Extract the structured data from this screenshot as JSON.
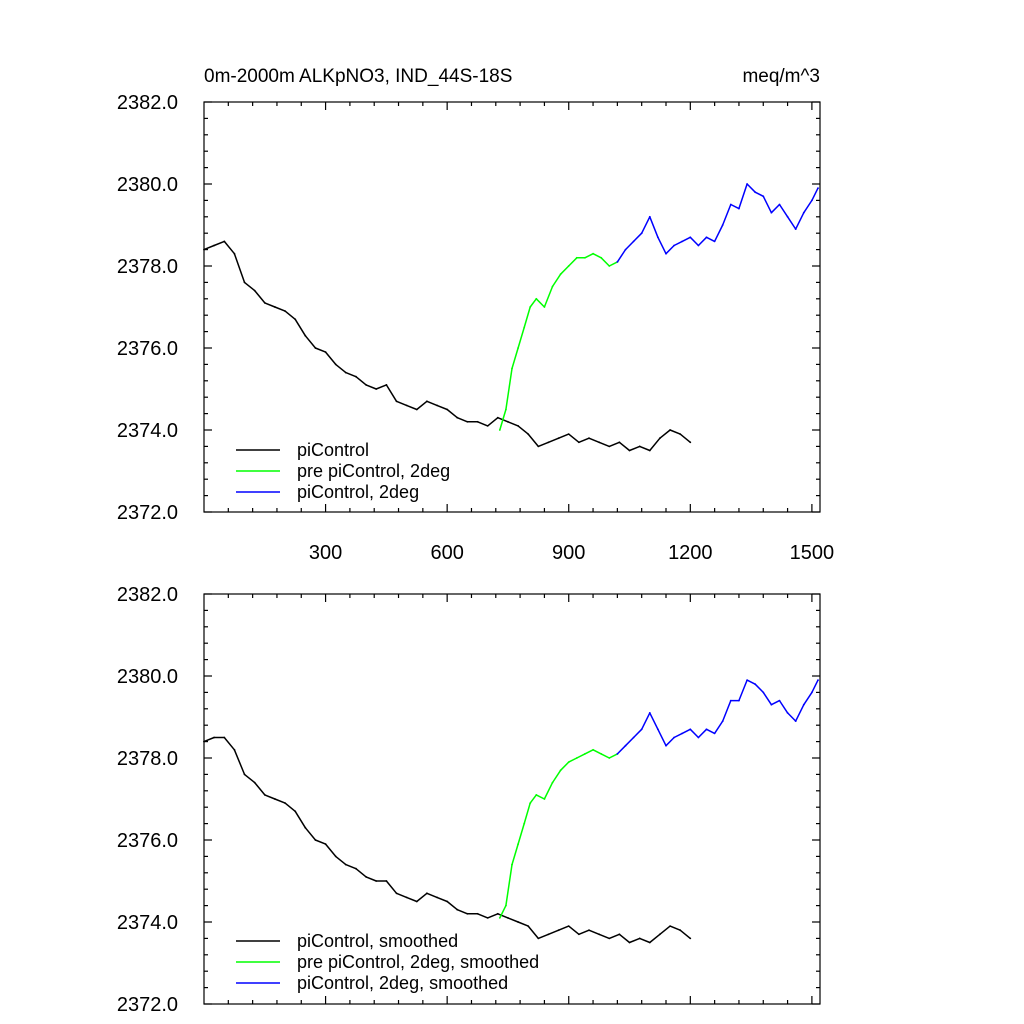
{
  "chart_data": [
    {
      "type": "line",
      "title_left": "0m-2000m ALKpNO3, IND_44S-18S",
      "title_right": "meq/m^3",
      "xlim": [
        0,
        1520
      ],
      "ylim": [
        2372.0,
        2382.0
      ],
      "x_ticks": [
        300,
        600,
        900,
        1200,
        1500
      ],
      "x_tick_labels": [
        "300",
        "600",
        "900",
        "1200",
        "1500"
      ],
      "y_ticks": [
        2372.0,
        2374.0,
        2376.0,
        2378.0,
        2380.0,
        2382.0
      ],
      "y_tick_labels": [
        "2372.0",
        "2374.0",
        "2376.0",
        "2378.0",
        "2380.0",
        "2382.0"
      ],
      "grid": false,
      "legend_position": "bottom-left",
      "series": [
        {
          "name": "piControl",
          "color": "#000000",
          "x": [
            0,
            25,
            50,
            75,
            100,
            125,
            150,
            175,
            200,
            225,
            250,
            275,
            300,
            325,
            350,
            375,
            400,
            425,
            450,
            475,
            500,
            525,
            550,
            575,
            600,
            625,
            650,
            675,
            700,
            725,
            750,
            775,
            800,
            825,
            850,
            875,
            900,
            925,
            950,
            975,
            1000,
            1025,
            1050,
            1075,
            1100,
            1125,
            1150,
            1175,
            1200
          ],
          "y": [
            2378.4,
            2378.5,
            2378.6,
            2378.3,
            2377.6,
            2377.4,
            2377.1,
            2377.0,
            2376.9,
            2376.7,
            2376.3,
            2376.0,
            2375.9,
            2375.6,
            2375.4,
            2375.3,
            2375.1,
            2375.0,
            2375.1,
            2374.7,
            2374.6,
            2374.5,
            2374.7,
            2374.6,
            2374.5,
            2374.3,
            2374.2,
            2374.2,
            2374.1,
            2374.3,
            2374.2,
            2374.1,
            2373.9,
            2373.6,
            2373.7,
            2373.8,
            2373.9,
            2373.7,
            2373.8,
            2373.7,
            2373.6,
            2373.7,
            2373.5,
            2373.6,
            2373.5,
            2373.8,
            2374.0,
            2373.9,
            2373.7
          ]
        },
        {
          "name": "pre piControl, 2deg",
          "color": "#00ff00",
          "x": [
            730,
            745,
            760,
            775,
            790,
            805,
            820,
            840,
            860,
            880,
            900,
            920,
            940,
            960,
            980,
            1000,
            1020
          ],
          "y": [
            2374.0,
            2374.5,
            2375.5,
            2376.0,
            2376.5,
            2377.0,
            2377.2,
            2377.0,
            2377.5,
            2377.8,
            2378.0,
            2378.2,
            2378.2,
            2378.3,
            2378.2,
            2378.0,
            2378.1
          ]
        },
        {
          "name": "piControl, 2deg",
          "color": "#0000ff",
          "x": [
            1020,
            1040,
            1060,
            1080,
            1100,
            1120,
            1140,
            1160,
            1180,
            1200,
            1220,
            1240,
            1260,
            1280,
            1300,
            1320,
            1340,
            1360,
            1380,
            1400,
            1420,
            1440,
            1460,
            1480,
            1500,
            1515
          ],
          "y": [
            2378.1,
            2378.4,
            2378.6,
            2378.8,
            2379.2,
            2378.7,
            2378.3,
            2378.5,
            2378.6,
            2378.7,
            2378.5,
            2378.7,
            2378.6,
            2379.0,
            2379.5,
            2379.4,
            2380.0,
            2379.8,
            2379.7,
            2379.3,
            2379.5,
            2379.2,
            2378.9,
            2379.3,
            2379.6,
            2379.9
          ]
        }
      ]
    },
    {
      "type": "line",
      "xlim": [
        0,
        1520
      ],
      "ylim": [
        2372.0,
        2382.0
      ],
      "x_ticks": [
        300,
        600,
        900,
        1200,
        1500
      ],
      "y_ticks": [
        2372.0,
        2374.0,
        2376.0,
        2378.0,
        2380.0,
        2382.0
      ],
      "y_tick_labels": [
        "2372.0",
        "2374.0",
        "2376.0",
        "2378.0",
        "2380.0",
        "2382.0"
      ],
      "grid": false,
      "legend_position": "bottom-left",
      "series": [
        {
          "name": "piControl, smoothed",
          "color": "#000000",
          "x": [
            0,
            25,
            50,
            75,
            100,
            125,
            150,
            175,
            200,
            225,
            250,
            275,
            300,
            325,
            350,
            375,
            400,
            425,
            450,
            475,
            500,
            525,
            550,
            575,
            600,
            625,
            650,
            675,
            700,
            725,
            750,
            775,
            800,
            825,
            850,
            875,
            900,
            925,
            950,
            975,
            1000,
            1025,
            1050,
            1075,
            1100,
            1125,
            1150,
            1175,
            1200
          ],
          "y": [
            2378.4,
            2378.5,
            2378.5,
            2378.2,
            2377.6,
            2377.4,
            2377.1,
            2377.0,
            2376.9,
            2376.7,
            2376.3,
            2376.0,
            2375.9,
            2375.6,
            2375.4,
            2375.3,
            2375.1,
            2375.0,
            2375.0,
            2374.7,
            2374.6,
            2374.5,
            2374.7,
            2374.6,
            2374.5,
            2374.3,
            2374.2,
            2374.2,
            2374.1,
            2374.2,
            2374.1,
            2374.0,
            2373.9,
            2373.6,
            2373.7,
            2373.8,
            2373.9,
            2373.7,
            2373.8,
            2373.7,
            2373.6,
            2373.7,
            2373.5,
            2373.6,
            2373.5,
            2373.7,
            2373.9,
            2373.8,
            2373.6
          ]
        },
        {
          "name": "pre piControl, 2deg, smoothed",
          "color": "#00ff00",
          "x": [
            730,
            745,
            760,
            775,
            790,
            805,
            820,
            840,
            860,
            880,
            900,
            920,
            940,
            960,
            980,
            1000,
            1020
          ],
          "y": [
            2374.1,
            2374.4,
            2375.4,
            2375.9,
            2376.4,
            2376.9,
            2377.1,
            2377.0,
            2377.4,
            2377.7,
            2377.9,
            2378.0,
            2378.1,
            2378.2,
            2378.1,
            2378.0,
            2378.1
          ]
        },
        {
          "name": "piControl, 2deg, smoothed",
          "color": "#0000ff",
          "x": [
            1020,
            1040,
            1060,
            1080,
            1100,
            1120,
            1140,
            1160,
            1180,
            1200,
            1220,
            1240,
            1260,
            1280,
            1300,
            1320,
            1340,
            1360,
            1380,
            1400,
            1420,
            1440,
            1460,
            1480,
            1500,
            1515
          ],
          "y": [
            2378.1,
            2378.3,
            2378.5,
            2378.7,
            2379.1,
            2378.7,
            2378.3,
            2378.5,
            2378.6,
            2378.7,
            2378.5,
            2378.7,
            2378.6,
            2378.9,
            2379.4,
            2379.4,
            2379.9,
            2379.8,
            2379.6,
            2379.3,
            2379.4,
            2379.1,
            2378.9,
            2379.3,
            2379.6,
            2379.9
          ]
        }
      ]
    }
  ]
}
